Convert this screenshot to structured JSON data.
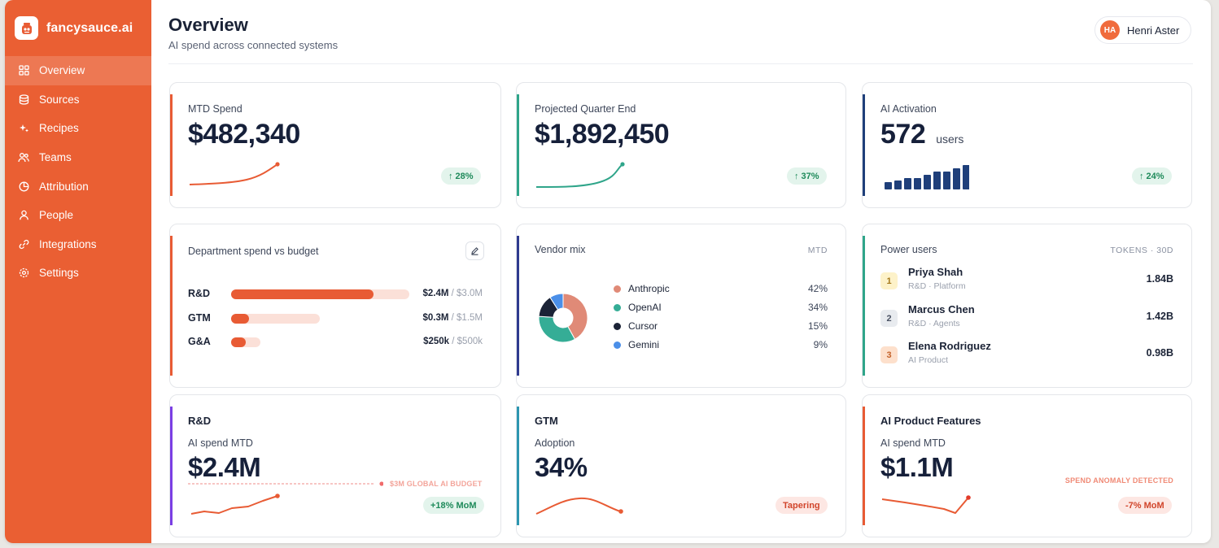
{
  "brand": {
    "name": "fancysauce.ai"
  },
  "sidebar": {
    "items": [
      {
        "label": "Overview",
        "icon": "grid-icon",
        "active": true
      },
      {
        "label": "Sources",
        "icon": "database-icon"
      },
      {
        "label": "Recipes",
        "icon": "sparkle-icon"
      },
      {
        "label": "Teams",
        "icon": "users-icon"
      },
      {
        "label": "Attribution",
        "icon": "pie-icon"
      },
      {
        "label": "People",
        "icon": "person-icon"
      },
      {
        "label": "Integrations",
        "icon": "link-icon"
      },
      {
        "label": "Settings",
        "icon": "gear-icon"
      }
    ]
  },
  "header": {
    "title": "Overview",
    "subtitle": "AI spend across connected systems",
    "user": {
      "initials": "HA",
      "name": "Henri Aster"
    }
  },
  "kpis": [
    {
      "label": "MTD Spend",
      "value": "$482,340",
      "unit": "",
      "change": "↑ 28%",
      "accent": "#e85b34"
    },
    {
      "label": "Projected Quarter End",
      "value": "$1,892,450",
      "unit": "",
      "change": "↑ 37%",
      "accent": "#2fa58a"
    },
    {
      "label": "AI Activation",
      "value": "572",
      "unit": "users",
      "change": "↑ 24%",
      "accent": "#1f3f7a"
    }
  ],
  "activation_bars": [
    0.3,
    0.38,
    0.45,
    0.45,
    0.6,
    0.72,
    0.72,
    0.85,
    1.0
  ],
  "department": {
    "title": "Department spend vs budget",
    "rows": [
      {
        "name": "R&D",
        "spent": "$2.4M",
        "budget": "/ $3.0M",
        "fraction": 0.8
      },
      {
        "name": "GTM",
        "spent": "$0.3M",
        "budget": "/ $1.5M",
        "fraction": 0.2
      },
      {
        "name": "G&A",
        "spent": "$250k",
        "budget": "/ $500k",
        "fraction": 0.5
      }
    ]
  },
  "vendor": {
    "title": "Vendor mix",
    "period": "MTD",
    "items": [
      {
        "name": "Anthropic",
        "pct": "42%",
        "value": 42,
        "color": "#e08a77"
      },
      {
        "name": "OpenAI",
        "pct": "34%",
        "value": 34,
        "color": "#35ad96"
      },
      {
        "name": "Cursor",
        "pct": "15%",
        "value": 15,
        "color": "#1b2336"
      },
      {
        "name": "Gemini",
        "pct": "9%",
        "value": 9,
        "color": "#4b8fe8"
      }
    ]
  },
  "power_users": {
    "title": "Power users",
    "period": "TOKENS · 30D",
    "rows": [
      {
        "rank": "1",
        "name": "Priya Shah",
        "meta": "R&D · Platform",
        "tokens": "1.84B"
      },
      {
        "rank": "2",
        "name": "Marcus Chen",
        "meta": "R&D · Agents",
        "tokens": "1.42B"
      },
      {
        "rank": "3",
        "name": "Elena Rodriguez",
        "meta": "AI Product",
        "tokens": "0.98B"
      }
    ]
  },
  "bottom": [
    {
      "title": "R&D",
      "sub": "AI spend MTD",
      "value": "$2.4M",
      "note": "$3M GLOBAL AI BUDGET",
      "pill": "+18% MoM",
      "accent": "#7b3fe4"
    },
    {
      "title": "GTM",
      "sub": "Adoption",
      "value": "34%",
      "note": "",
      "pill": "Tapering",
      "accent": "#2d96b0"
    },
    {
      "title": "AI Product Features",
      "sub": "AI spend MTD",
      "value": "$1.1M",
      "note": "SPEND ANOMALY DETECTED",
      "pill": "-7% MoM",
      "accent": "#e85b34"
    }
  ]
}
